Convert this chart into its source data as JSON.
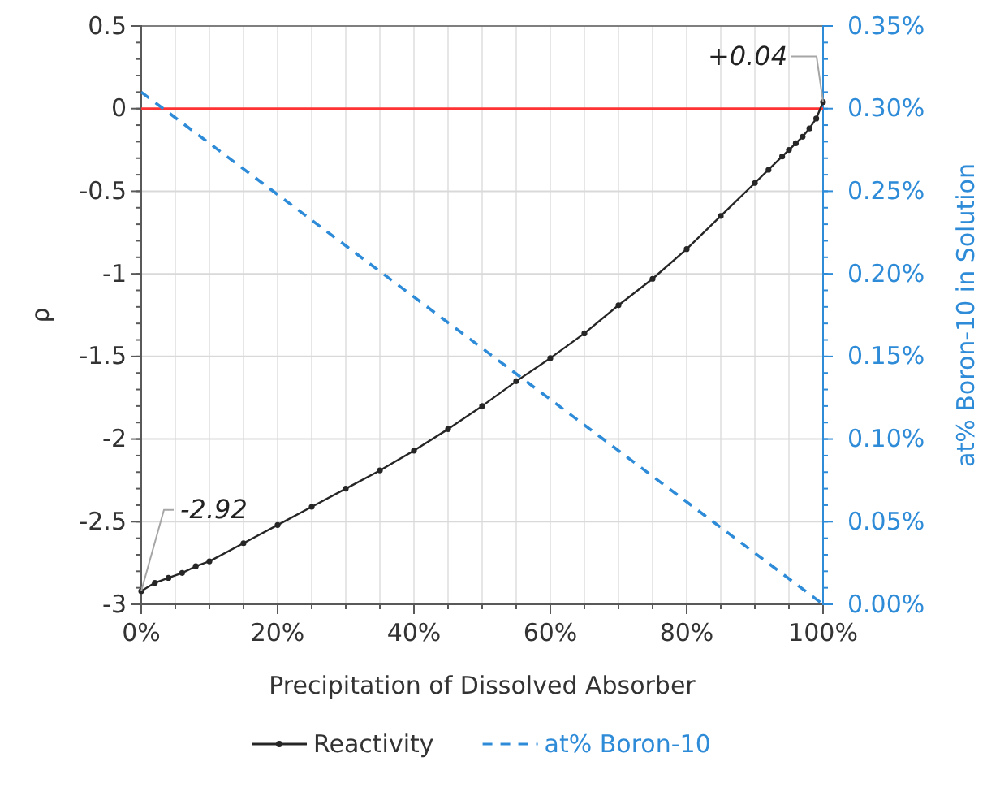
{
  "chart_data": {
    "type": "line",
    "xlabel": "Precipitation of Dissolved Absorber",
    "ylabel": "ρ",
    "y2label": "at% Boron-10 in Solution",
    "xlim": [
      0,
      100
    ],
    "xticks": [
      {
        "value": 0,
        "label": "0%"
      },
      {
        "value": 20,
        "label": "20%"
      },
      {
        "value": 40,
        "label": "40%"
      },
      {
        "value": 60,
        "label": "60%"
      },
      {
        "value": 80,
        "label": "80%"
      },
      {
        "value": 100,
        "label": "100%"
      }
    ],
    "ylim": [
      -3,
      0.5
    ],
    "yticks": [
      -3,
      -2.5,
      -2,
      -1.5,
      -1,
      -0.5,
      0,
      0.5
    ],
    "y2lim": [
      0,
      0.35
    ],
    "y2ticks": [
      {
        "value": 0,
        "label": "0.00%"
      },
      {
        "value": 0.05,
        "label": "0.05%"
      },
      {
        "value": 0.1,
        "label": "0.10%"
      },
      {
        "value": 0.15,
        "label": "0.15%"
      },
      {
        "value": 0.2,
        "label": "0.20%"
      },
      {
        "value": 0.25,
        "label": "0.25%"
      },
      {
        "value": 0.3,
        "label": "0.30%"
      },
      {
        "value": 0.35,
        "label": "0.35%"
      }
    ],
    "grid": true,
    "legend": "bottom",
    "series": [
      {
        "name": "Reactivity",
        "color": "#262626",
        "marker": "circle",
        "line_style": "solid",
        "x": [
          0,
          2,
          4,
          6,
          8,
          10,
          15,
          20,
          25,
          30,
          35,
          40,
          45,
          50,
          55,
          60,
          65,
          70,
          75,
          80,
          85,
          90,
          92,
          94,
          95,
          96,
          97,
          98,
          99,
          100
        ],
        "values": [
          -2.92,
          -2.87,
          -2.84,
          -2.81,
          -2.77,
          -2.74,
          -2.63,
          -2.52,
          -2.41,
          -2.3,
          -2.19,
          -2.07,
          -1.94,
          -1.8,
          -1.65,
          -1.51,
          -1.36,
          -1.19,
          -1.03,
          -0.85,
          -0.65,
          -0.45,
          -0.37,
          -0.29,
          -0.25,
          -0.21,
          -0.17,
          -0.12,
          -0.06,
          0.04
        ]
      },
      {
        "name": "at% Boron-10",
        "color": "#2e8bd8",
        "marker": "none",
        "line_style": "dashed",
        "axis": "y2",
        "x": [
          0,
          100
        ],
        "values": [
          0.31,
          0
        ]
      }
    ],
    "ref_lines": [
      {
        "axis": "y",
        "value": 0,
        "color": "#ff3333"
      }
    ],
    "annotations": [
      {
        "text": "-2.92",
        "x": 0,
        "y": -2.92
      },
      {
        "text": "+0.04",
        "x": 100,
        "y": 0.04
      }
    ]
  }
}
